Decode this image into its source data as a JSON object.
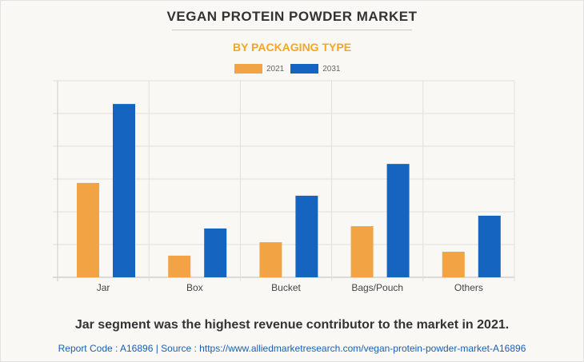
{
  "chart_data": {
    "type": "bar",
    "title": "VEGAN PROTEIN POWDER MARKET",
    "subtitle": "BY PACKAGING TYPE",
    "categories": [
      "Jar",
      "Box",
      "Bucket",
      "Bags/Pouch",
      "Others"
    ],
    "series": [
      {
        "name": "2021",
        "color": "#f2a444",
        "values": [
          2.88,
          0.66,
          1.07,
          1.56,
          0.78
        ]
      },
      {
        "name": "2031",
        "color": "#1565c0",
        "values": [
          5.29,
          1.49,
          2.49,
          3.46,
          1.88
        ]
      }
    ],
    "ylim": [
      0,
      6
    ],
    "grid": true,
    "legend": "top-center",
    "xlabel": "",
    "ylabel": ""
  },
  "insight": "Jar segment was the highest revenue contributor to the market in 2021.",
  "source": "Report Code : A16896  |  Source : https://www.alliedmarketresearch.com/vegan-protein-powder-market-A16896"
}
